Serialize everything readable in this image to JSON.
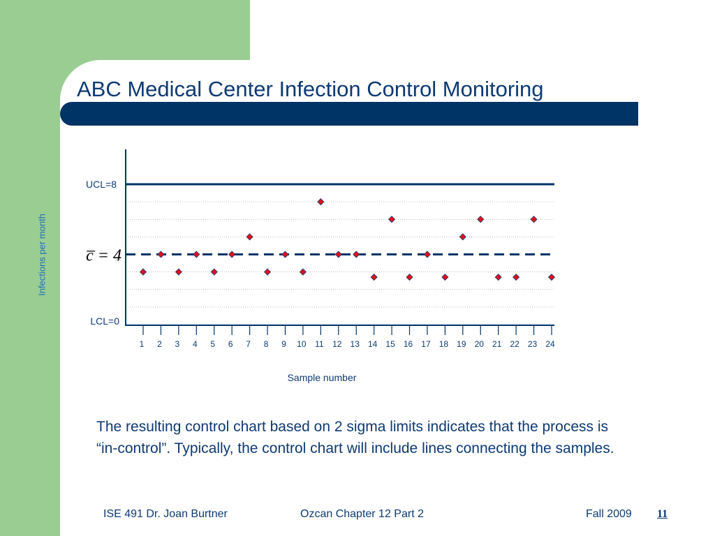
{
  "slide": {
    "title": "ABC Medical Center Infection Control Monitoring",
    "body_text": "The resulting control chart based on 2 sigma limits indicates that the process is “in-control”. Typically, the control chart will include lines connecting the samples.",
    "footer": {
      "course": "ISE 491  Dr. Joan Burtner",
      "chapter": "Ozcan Chapter 12  Part 2",
      "term": "Fall 2009",
      "page_number": "11"
    },
    "colors": {
      "green": "#9acd92",
      "navy": "#003366",
      "title_text": "#0d3a73",
      "marker_fill": "#e3101a",
      "marker_edge": "#0d3a73",
      "axis_label": "#1f6fb2"
    }
  },
  "chart_data": {
    "type": "scatter",
    "title": "",
    "xlabel": "Sample number",
    "ylabel": "Infections per month",
    "x": [
      1,
      2,
      3,
      4,
      5,
      6,
      7,
      8,
      9,
      10,
      11,
      12,
      13,
      14,
      15,
      16,
      17,
      18,
      19,
      20,
      21,
      22,
      23,
      24
    ],
    "y": [
      3,
      4,
      3,
      4,
      3,
      4,
      5,
      3,
      4,
      3,
      7,
      4,
      4,
      2.7,
      6,
      2.7,
      4,
      2.7,
      5,
      6,
      2.7,
      2.7,
      6,
      2.7
    ],
    "ylim": [
      0,
      8
    ],
    "control_lines": {
      "ucl": {
        "label": "UCL=8",
        "value": 8
      },
      "center": {
        "label": "c̅ = 4",
        "value": 4
      },
      "lcl": {
        "label": "LCL=0",
        "value": 0
      }
    },
    "grid": true,
    "marker": "diamond"
  }
}
